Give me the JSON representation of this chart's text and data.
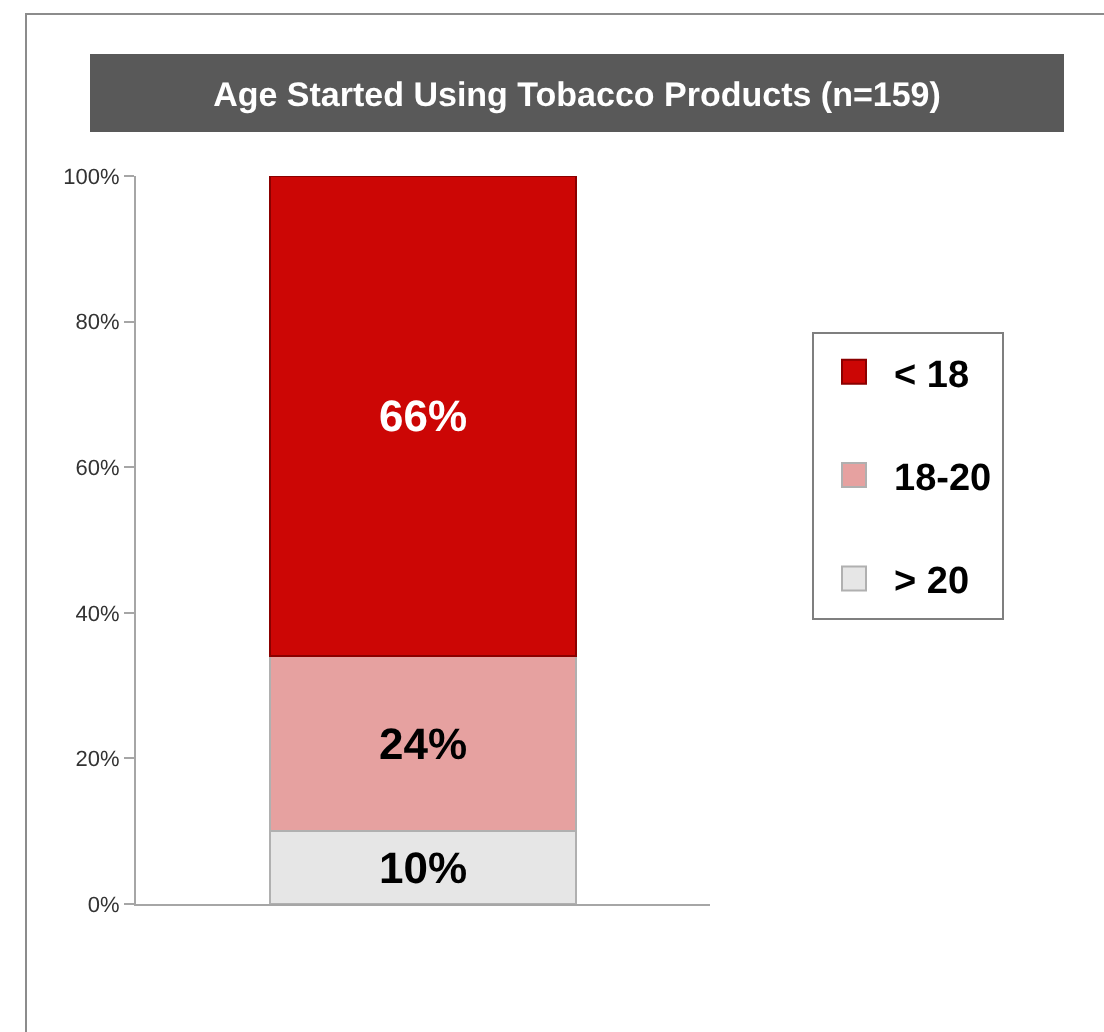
{
  "chart_data": {
    "type": "bar",
    "title": "Age Started Using Tobacco Products (n=159)",
    "categories": [
      null
    ],
    "stacked": true,
    "series": [
      {
        "name": "> 20",
        "color": "#e6e6e6",
        "values": [
          10
        ],
        "value_labels": [
          "10%"
        ]
      },
      {
        "name": "18-20",
        "color": "#e6a1a0",
        "values": [
          24
        ],
        "value_labels": [
          "24%"
        ]
      },
      {
        "name": "< 18",
        "color": "#cc0605",
        "values": [
          66
        ],
        "value_labels": [
          "66%"
        ]
      }
    ],
    "ylim": [
      0,
      100
    ],
    "yticks": [
      {
        "value": 0,
        "label": "0%"
      },
      {
        "value": 20,
        "label": "20%"
      },
      {
        "value": 40,
        "label": "40%"
      },
      {
        "value": 60,
        "label": "60%"
      },
      {
        "value": 80,
        "label": "80%"
      },
      {
        "value": 100,
        "label": "100%"
      }
    ],
    "grid": false,
    "legend": "right"
  }
}
